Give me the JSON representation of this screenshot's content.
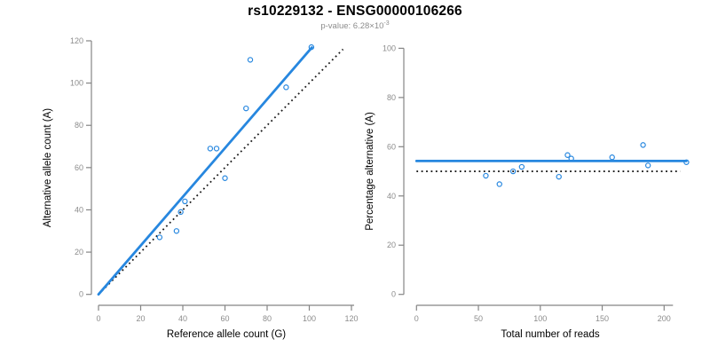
{
  "header": {
    "title": "rs10229132 - ENSG00000106266",
    "pvalue_prefix": "p-value: 6.28×10",
    "pvalue_exponent": "-3"
  },
  "colors": {
    "accent_blue": "#2787DF",
    "dotted_black": "#1a1a1a",
    "axis_gray": "#858585",
    "tick_label_gray": "#8c8c8c",
    "title_black": "#000000"
  },
  "chart_data": [
    {
      "type": "scatter",
      "name": "allele-counts",
      "xlabel": "Reference allele count (G)",
      "ylabel": "Alternative allele count (A)",
      "xlim": [
        0,
        120
      ],
      "ylim": [
        0,
        120
      ],
      "xticks": [
        0,
        20,
        40,
        60,
        80,
        100,
        120
      ],
      "yticks": [
        0,
        20,
        40,
        60,
        80,
        100,
        120
      ],
      "grid": false,
      "points": {
        "x": [
          29,
          37,
          39,
          41,
          53,
          56,
          60,
          70,
          72,
          89,
          101
        ],
        "y": [
          27,
          30,
          39,
          44,
          69,
          69,
          55,
          88,
          111,
          98,
          117
        ]
      },
      "fit_line": {
        "x1": 0,
        "y1": 0,
        "x2": 101.2,
        "y2": 116.8,
        "style": "solid-blue"
      },
      "reference_line": {
        "x1": 0,
        "y1": 0,
        "x2": 116,
        "y2": 116,
        "style": "dotted-black"
      }
    },
    {
      "type": "scatter",
      "name": "percentage-vs-coverage",
      "xlabel": "Total number of reads",
      "ylabel": "Percentage alternative (A)",
      "xlim": [
        0,
        220
      ],
      "ylim": [
        0,
        100
      ],
      "xticks": [
        0,
        50,
        100,
        150,
        200
      ],
      "yticks": [
        0,
        20,
        40,
        60,
        80,
        100
      ],
      "grid": false,
      "points": {
        "x": [
          56,
          67,
          78,
          85,
          115,
          122,
          125,
          158,
          183,
          187,
          218
        ],
        "y": [
          48.2,
          44.8,
          50,
          51.8,
          47.8,
          56.6,
          55.2,
          55.7,
          60.7,
          52.4,
          53.7
        ]
      },
      "fit_line": {
        "x1": 0,
        "y1": 54.2,
        "x2": 218,
        "y2": 54.2,
        "style": "solid-blue"
      },
      "reference_line": {
        "x1": 0,
        "y1": 50,
        "x2": 213,
        "y2": 50,
        "style": "dotted-black"
      }
    }
  ]
}
